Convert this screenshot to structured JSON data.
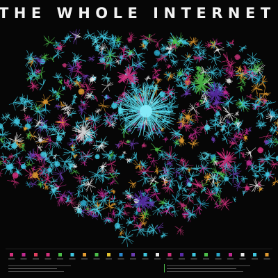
{
  "header": {
    "title": "THE WHOLE INTERNET"
  }
}
